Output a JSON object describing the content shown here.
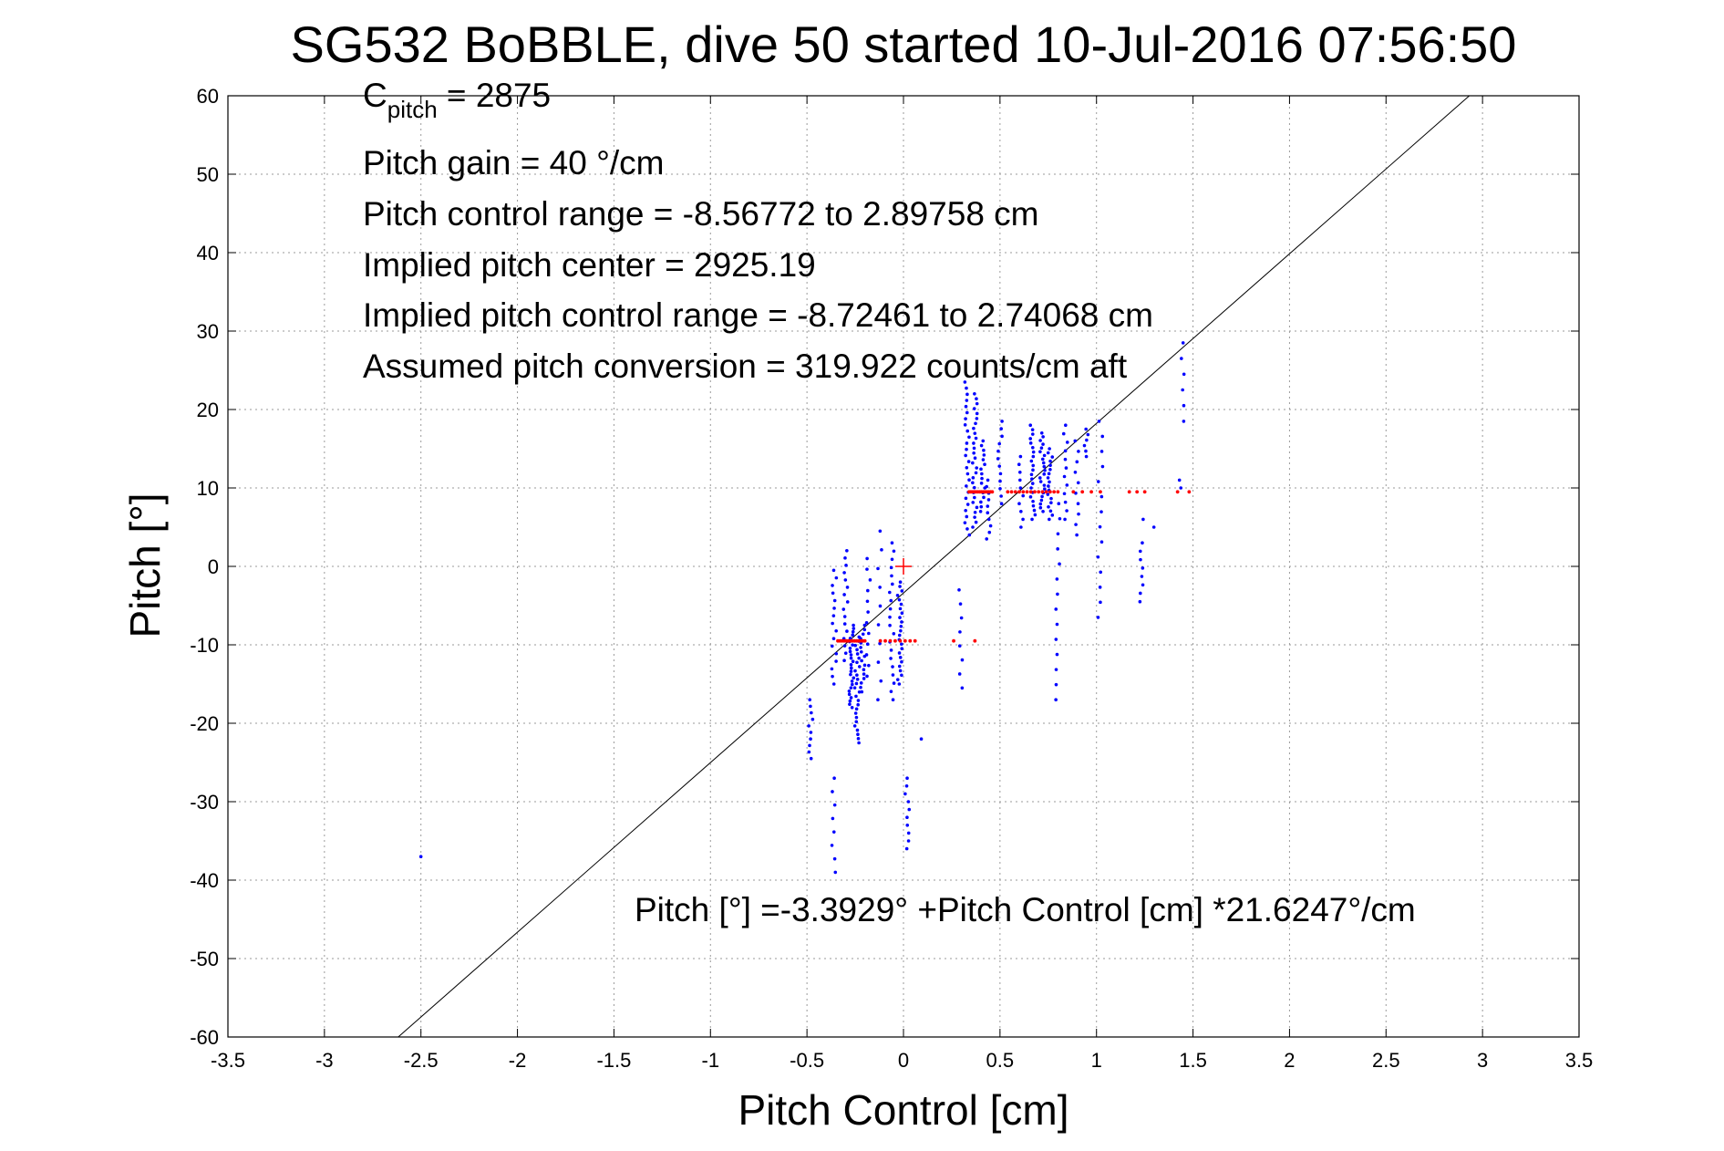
{
  "chart_data": {
    "type": "scatter",
    "title": "SG532 BoBBLE, dive 50 started 10-Jul-2016 07:56:50",
    "xlabel": "Pitch Control [cm]",
    "ylabel": "Pitch [°]",
    "xlim": [
      -3.5,
      3.5
    ],
    "ylim": [
      -60,
      60
    ],
    "grid": true,
    "xticks": [
      -3.5,
      -3,
      -2.5,
      -2,
      -1.5,
      -1,
      -0.5,
      0,
      0.5,
      1,
      1.5,
      2,
      2.5,
      3,
      3.5
    ],
    "xtick_labels": [
      "-3.5",
      "-3",
      "-2.5",
      "-2",
      "-1.5",
      "-1",
      "-0.5",
      "0",
      "0.5",
      "1",
      "1.5",
      "2",
      "2.5",
      "3",
      "3.5"
    ],
    "yticks": [
      -60,
      -50,
      -40,
      -30,
      -20,
      -10,
      0,
      10,
      20,
      30,
      40,
      50,
      60
    ],
    "ytick_labels": [
      "-60",
      "-50",
      "-40",
      "-30",
      "-20",
      "-10",
      "0",
      "10",
      "20",
      "30",
      "40",
      "50",
      "60"
    ],
    "annotations": {
      "c_pitch_symbol": "C",
      "c_pitch_subscript": "pitch",
      "c_pitch_value": " = 2875",
      "pitch_gain": "Pitch gain = 40 °/cm",
      "pitch_control_range": "Pitch control range = -8.56772 to 2.89758 cm",
      "implied_pitch_center": "Implied pitch center = 2925.19",
      "implied_pitch_control_range": "Implied pitch control range = -8.72461 to 2.74068 cm",
      "assumed_pitch_conversion": "Assumed pitch conversion = 319.922 counts/cm aft",
      "fit_equation": "Pitch [°] =-3.3929° +Pitch Control [cm] *21.6247°/cm"
    },
    "fit_line": {
      "intercept": -3.3929,
      "slope": 21.6247
    },
    "center_marker": {
      "x": 0.0,
      "y": 0.0,
      "color": "#ff0000"
    },
    "series": [
      {
        "color": "#0000ff",
        "marker": "dot",
        "clusters": [
          {
            "x": -2.5,
            "y_lo": -37,
            "y_hi": -37,
            "n": 1
          },
          {
            "x": -0.48,
            "y_lo": -24.5,
            "y_hi": -17,
            "n": 10
          },
          {
            "x": -0.36,
            "y_lo": -39,
            "y_hi": -27,
            "n": 8
          },
          {
            "x": -0.36,
            "y_lo": -15,
            "y_hi": -0.5,
            "n": 16
          },
          {
            "x": -0.3,
            "y_lo": -12,
            "y_hi": 2,
            "n": 16
          },
          {
            "x": -0.27,
            "y_lo": -18,
            "y_hi": -7.5,
            "n": 26
          },
          {
            "x": -0.24,
            "y_lo": -22.5,
            "y_hi": -9,
            "n": 26
          },
          {
            "x": -0.21,
            "y_lo": -16,
            "y_hi": -7.5,
            "n": 16
          },
          {
            "x": -0.18,
            "y_lo": -14,
            "y_hi": 1,
            "n": 12
          },
          {
            "x": -0.12,
            "y_lo": -17,
            "y_hi": 4.5,
            "n": 10
          },
          {
            "x": -0.06,
            "y_lo": -17,
            "y_hi": 3,
            "n": 20
          },
          {
            "x": -0.02,
            "y_lo": -15,
            "y_hi": -2,
            "n": 24
          },
          {
            "x": 0.02,
            "y_lo": -36,
            "y_hi": -27,
            "n": 10
          },
          {
            "x": 0.08,
            "y_lo": -22,
            "y_hi": -22,
            "n": 1
          },
          {
            "x": 0.3,
            "y_lo": -15.5,
            "y_hi": -3,
            "n": 8
          },
          {
            "x": 0.33,
            "y_lo": 4,
            "y_hi": 23.5,
            "n": 26
          },
          {
            "x": 0.37,
            "y_lo": 5,
            "y_hi": 22,
            "n": 28
          },
          {
            "x": 0.41,
            "y_lo": 7,
            "y_hi": 16,
            "n": 16
          },
          {
            "x": 0.44,
            "y_lo": 3.5,
            "y_hi": 11,
            "n": 10
          },
          {
            "x": 0.5,
            "y_lo": 8,
            "y_hi": 18.5,
            "n": 12
          },
          {
            "x": 0.61,
            "y_lo": 5,
            "y_hi": 14,
            "n": 10
          },
          {
            "x": 0.67,
            "y_lo": 6,
            "y_hi": 18,
            "n": 22
          },
          {
            "x": 0.72,
            "y_lo": 7,
            "y_hi": 17,
            "n": 22
          },
          {
            "x": 0.76,
            "y_lo": 6,
            "y_hi": 15,
            "n": 18
          },
          {
            "x": 0.8,
            "y_lo": -17,
            "y_hi": 8,
            "n": 14
          },
          {
            "x": 0.84,
            "y_lo": 6,
            "y_hi": 18,
            "n": 12
          },
          {
            "x": 0.9,
            "y_lo": 4,
            "y_hi": 16,
            "n": 10
          },
          {
            "x": 0.95,
            "y_lo": 14,
            "y_hi": 17.5,
            "n": 6
          },
          {
            "x": 1.02,
            "y_lo": -6.5,
            "y_hi": 18.5,
            "n": 14
          },
          {
            "x": 1.23,
            "y_lo": -4.5,
            "y_hi": 3,
            "n": 8
          },
          {
            "x": 1.25,
            "y_lo": 6,
            "y_hi": 6,
            "n": 1
          },
          {
            "x": 1.29,
            "y_lo": 5,
            "y_hi": 5,
            "n": 1
          },
          {
            "x": 1.45,
            "y_lo": 18.5,
            "y_hi": 28.5,
            "n": 6
          },
          {
            "x": 1.44,
            "y_lo": 10,
            "y_hi": 11,
            "n": 2
          }
        ]
      },
      {
        "color": "#ff0000",
        "marker": "dot",
        "clusters": [
          {
            "x_lo": -0.34,
            "x_hi": -0.2,
            "y": -9.5,
            "n": 14
          },
          {
            "x_lo": -0.12,
            "x_hi": 0.06,
            "y": -9.5,
            "n": 8
          },
          {
            "x_lo": 0.34,
            "x_hi": 0.46,
            "y": 9.5,
            "n": 14
          },
          {
            "x_lo": 0.54,
            "x_hi": 0.8,
            "y": 9.5,
            "n": 14
          },
          {
            "x_lo": 0.88,
            "x_hi": 1.02,
            "y": 9.5,
            "n": 4
          },
          {
            "x_lo": 1.17,
            "x_hi": 1.25,
            "y": 9.5,
            "n": 3
          },
          {
            "x_lo": 1.42,
            "x_hi": 1.48,
            "y": 9.5,
            "n": 2
          },
          {
            "x_lo": 0.37,
            "x_hi": 0.37,
            "y": -9.5,
            "n": 1
          },
          {
            "x_lo": 0.26,
            "x_hi": 0.26,
            "y": -9.5,
            "n": 1
          }
        ]
      }
    ]
  }
}
